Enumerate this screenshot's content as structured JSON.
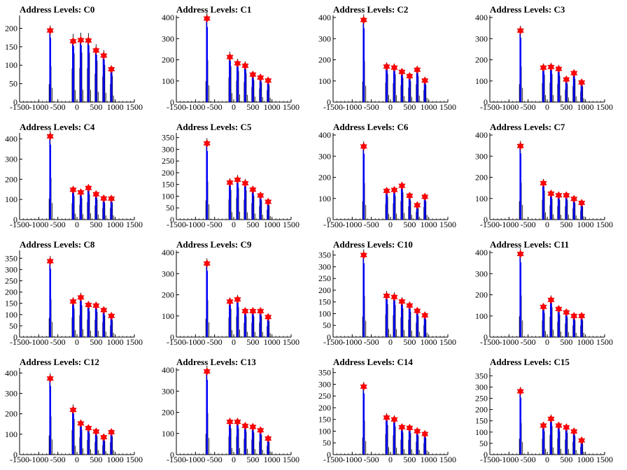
{
  "chart_data": [
    {
      "type": "histogram",
      "title": "Address Levels: C0",
      "xlim": [
        -1500,
        1500
      ],
      "ylim": [
        0,
        235
      ],
      "xticks": [
        "-1500",
        "-1000",
        "-500",
        "0",
        "500",
        "1000",
        "1500"
      ],
      "yticks": [
        "0",
        "50",
        "100",
        "150",
        "200"
      ],
      "peaks": [
        {
          "x": -700,
          "y": 194
        },
        {
          "x": -100,
          "y": 165
        },
        {
          "x": 100,
          "y": 168
        },
        {
          "x": 300,
          "y": 167
        },
        {
          "x": 500,
          "y": 140
        },
        {
          "x": 700,
          "y": 126
        },
        {
          "x": 900,
          "y": 89
        }
      ]
    },
    {
      "type": "histogram",
      "title": "Address Levels: C1",
      "xlim": [
        -1500,
        1500
      ],
      "ylim": [
        0,
        410
      ],
      "xticks": [
        "-1500",
        "-1000",
        "-500",
        "0",
        "500",
        "1000",
        "1500"
      ],
      "yticks": [
        "0",
        "100",
        "200",
        "300",
        "400"
      ],
      "peaks": [
        {
          "x": -700,
          "y": 395
        },
        {
          "x": -100,
          "y": 213
        },
        {
          "x": 100,
          "y": 183
        },
        {
          "x": 300,
          "y": 172
        },
        {
          "x": 500,
          "y": 130
        },
        {
          "x": 700,
          "y": 116
        },
        {
          "x": 900,
          "y": 102
        }
      ]
    },
    {
      "type": "histogram",
      "title": "Address Levels: C2",
      "xlim": [
        -1500,
        1500
      ],
      "ylim": [
        0,
        410
      ],
      "xticks": [
        "-1500",
        "-1000",
        "-500",
        "0",
        "500",
        "1000",
        "1500"
      ],
      "yticks": [
        "0",
        "100",
        "200",
        "300",
        "400"
      ],
      "peaks": [
        {
          "x": -700,
          "y": 388
        },
        {
          "x": -100,
          "y": 168
        },
        {
          "x": 100,
          "y": 163
        },
        {
          "x": 300,
          "y": 143
        },
        {
          "x": 500,
          "y": 123
        },
        {
          "x": 700,
          "y": 153
        },
        {
          "x": 900,
          "y": 102
        }
      ]
    },
    {
      "type": "histogram",
      "title": "Address Levels: C3",
      "xlim": [
        -1500,
        1500
      ],
      "ylim": [
        0,
        410
      ],
      "xticks": [
        "-1500",
        "-1000",
        "-500",
        "0",
        "500",
        "1000",
        "1500"
      ],
      "yticks": [
        "0",
        "100",
        "200",
        "300",
        "400"
      ],
      "peaks": [
        {
          "x": -700,
          "y": 338
        },
        {
          "x": -100,
          "y": 163
        },
        {
          "x": 100,
          "y": 166
        },
        {
          "x": 300,
          "y": 157
        },
        {
          "x": 500,
          "y": 107
        },
        {
          "x": 700,
          "y": 137
        },
        {
          "x": 900,
          "y": 93
        }
      ]
    },
    {
      "type": "histogram",
      "title": "Address Levels: C4",
      "xlim": [
        -1500,
        1500
      ],
      "ylim": [
        0,
        430
      ],
      "xticks": [
        "-1500",
        "-1000",
        "-500",
        "0",
        "500",
        "1000",
        "1500"
      ],
      "yticks": [
        "0",
        "100",
        "200",
        "300",
        "400"
      ],
      "peaks": [
        {
          "x": -700,
          "y": 413
        },
        {
          "x": -100,
          "y": 148
        },
        {
          "x": 100,
          "y": 135
        },
        {
          "x": 300,
          "y": 157
        },
        {
          "x": 500,
          "y": 126
        },
        {
          "x": 700,
          "y": 105
        },
        {
          "x": 900,
          "y": 104
        }
      ]
    },
    {
      "type": "histogram",
      "title": "Address Levels: C5",
      "xlim": [
        -1500,
        1500
      ],
      "ylim": [
        0,
        370
      ],
      "xticks": [
        "-1500",
        "-1000",
        "-500",
        "0",
        "500",
        "1000",
        "1500"
      ],
      "yticks": [
        "0",
        "50",
        "100",
        "150",
        "200",
        "250",
        "300",
        "350"
      ],
      "peaks": [
        {
          "x": -700,
          "y": 325
        },
        {
          "x": -100,
          "y": 158
        },
        {
          "x": 100,
          "y": 170
        },
        {
          "x": 300,
          "y": 155
        },
        {
          "x": 500,
          "y": 128
        },
        {
          "x": 700,
          "y": 103
        },
        {
          "x": 900,
          "y": 76
        }
      ]
    },
    {
      "type": "histogram",
      "title": "Address Levels: C6",
      "xlim": [
        -1500,
        1500
      ],
      "ylim": [
        0,
        410
      ],
      "xticks": [
        "-1500",
        "-1000",
        "-500",
        "0",
        "500",
        "1000",
        "1500"
      ],
      "yticks": [
        "0",
        "100",
        "200",
        "300",
        "400"
      ],
      "peaks": [
        {
          "x": -700,
          "y": 346
        },
        {
          "x": -100,
          "y": 136
        },
        {
          "x": 100,
          "y": 140
        },
        {
          "x": 300,
          "y": 160
        },
        {
          "x": 500,
          "y": 113
        },
        {
          "x": 700,
          "y": 68
        },
        {
          "x": 900,
          "y": 108
        }
      ]
    },
    {
      "type": "histogram",
      "title": "Address Levels: C7",
      "xlim": [
        -1500,
        1500
      ],
      "ylim": [
        0,
        410
      ],
      "xticks": [
        "-1500",
        "-1000",
        "-500",
        "0",
        "500",
        "1000",
        "1500"
      ],
      "yticks": [
        "0",
        "100",
        "200",
        "300",
        "400"
      ],
      "peaks": [
        {
          "x": -700,
          "y": 348
        },
        {
          "x": -100,
          "y": 172
        },
        {
          "x": 100,
          "y": 123
        },
        {
          "x": 300,
          "y": 115
        },
        {
          "x": 500,
          "y": 115
        },
        {
          "x": 700,
          "y": 98
        },
        {
          "x": 900,
          "y": 79
        }
      ]
    },
    {
      "type": "histogram",
      "title": "Address Levels: C8",
      "xlim": [
        -1500,
        1500
      ],
      "ylim": [
        0,
        385
      ],
      "xticks": [
        "-1500",
        "-1000",
        "-500",
        "0",
        "500",
        "1000",
        "1500"
      ],
      "yticks": [
        "0",
        "50",
        "100",
        "150",
        "200",
        "250",
        "300",
        "350"
      ],
      "peaks": [
        {
          "x": -700,
          "y": 337
        },
        {
          "x": -100,
          "y": 158
        },
        {
          "x": 100,
          "y": 176
        },
        {
          "x": 300,
          "y": 143
        },
        {
          "x": 500,
          "y": 140
        },
        {
          "x": 700,
          "y": 120
        },
        {
          "x": 900,
          "y": 94
        }
      ]
    },
    {
      "type": "histogram",
      "title": "Address Levels: C9",
      "xlim": [
        -1500,
        1500
      ],
      "ylim": [
        0,
        410
      ],
      "xticks": [
        "-1500",
        "-1000",
        "-500",
        "0",
        "500",
        "1000",
        "1500"
      ],
      "yticks": [
        "0",
        "100",
        "200",
        "300",
        "400"
      ],
      "peaks": [
        {
          "x": -700,
          "y": 348
        },
        {
          "x": -100,
          "y": 168
        },
        {
          "x": 100,
          "y": 178
        },
        {
          "x": 300,
          "y": 123
        },
        {
          "x": 500,
          "y": 123
        },
        {
          "x": 700,
          "y": 123
        },
        {
          "x": 900,
          "y": 95
        }
      ]
    },
    {
      "type": "histogram",
      "title": "Address Levels: C10",
      "xlim": [
        -1500,
        1500
      ],
      "ylim": [
        0,
        370
      ],
      "xticks": [
        "-1500",
        "-1000",
        "-500",
        "0",
        "500",
        "1000",
        "1500"
      ],
      "yticks": [
        "0",
        "50",
        "100",
        "150",
        "200",
        "250",
        "300",
        "350"
      ],
      "peaks": [
        {
          "x": -700,
          "y": 350
        },
        {
          "x": -100,
          "y": 176
        },
        {
          "x": 100,
          "y": 171
        },
        {
          "x": 300,
          "y": 152
        },
        {
          "x": 500,
          "y": 135
        },
        {
          "x": 700,
          "y": 112
        },
        {
          "x": 900,
          "y": 93
        }
      ]
    },
    {
      "type": "histogram",
      "title": "Address Levels: C11",
      "xlim": [
        -1500,
        1500
      ],
      "ylim": [
        0,
        410
      ],
      "xticks": [
        "-1500",
        "-1000",
        "-500",
        "0",
        "500",
        "1000",
        "1500"
      ],
      "yticks": [
        "0",
        "100",
        "200",
        "300",
        "400"
      ],
      "peaks": [
        {
          "x": -700,
          "y": 393
        },
        {
          "x": -100,
          "y": 143
        },
        {
          "x": 100,
          "y": 176
        },
        {
          "x": 300,
          "y": 133
        },
        {
          "x": 500,
          "y": 117
        },
        {
          "x": 700,
          "y": 100
        },
        {
          "x": 900,
          "y": 100
        }
      ]
    },
    {
      "type": "histogram",
      "title": "Address Levels: C12",
      "xlim": [
        -1500,
        1500
      ],
      "ylim": [
        0,
        425
      ],
      "xticks": [
        "-1500",
        "-1000",
        "-500",
        "0",
        "500",
        "1000",
        "1500"
      ],
      "yticks": [
        "0",
        "100",
        "200",
        "300",
        "400"
      ],
      "peaks": [
        {
          "x": -700,
          "y": 373
        },
        {
          "x": -100,
          "y": 219
        },
        {
          "x": 100,
          "y": 153
        },
        {
          "x": 300,
          "y": 130
        },
        {
          "x": 500,
          "y": 113
        },
        {
          "x": 700,
          "y": 85
        },
        {
          "x": 900,
          "y": 110
        }
      ]
    },
    {
      "type": "histogram",
      "title": "Address Levels: C13",
      "xlim": [
        -1500,
        1500
      ],
      "ylim": [
        0,
        410
      ],
      "xticks": [
        "-1500",
        "-1000",
        "-500",
        "0",
        "500",
        "1000",
        "1500"
      ],
      "yticks": [
        "0",
        "100",
        "200",
        "300",
        "400"
      ],
      "peaks": [
        {
          "x": -700,
          "y": 393
        },
        {
          "x": -100,
          "y": 155
        },
        {
          "x": 100,
          "y": 155
        },
        {
          "x": 300,
          "y": 136
        },
        {
          "x": 500,
          "y": 131
        },
        {
          "x": 700,
          "y": 115
        },
        {
          "x": 900,
          "y": 76
        }
      ]
    },
    {
      "type": "histogram",
      "title": "Address Levels: C14",
      "xlim": [
        -1500,
        1500
      ],
      "ylim": [
        0,
        370
      ],
      "xticks": [
        "-1500",
        "-1000",
        "-500",
        "0",
        "500",
        "1000",
        "1500"
      ],
      "yticks": [
        "0",
        "50",
        "100",
        "150",
        "200",
        "250",
        "300",
        "350"
      ],
      "peaks": [
        {
          "x": -700,
          "y": 290
        },
        {
          "x": -100,
          "y": 158
        },
        {
          "x": 100,
          "y": 150
        },
        {
          "x": 300,
          "y": 117
        },
        {
          "x": 500,
          "y": 114
        },
        {
          "x": 700,
          "y": 100
        },
        {
          "x": 900,
          "y": 88
        }
      ]
    },
    {
      "type": "histogram",
      "title": "Address Levels: C15",
      "xlim": [
        -1500,
        1500
      ],
      "ylim": [
        0,
        385
      ],
      "xticks": [
        "-1500",
        "-1000",
        "-500",
        "0",
        "500",
        "1000",
        "1500"
      ],
      "yticks": [
        "0",
        "50",
        "100",
        "150",
        "200",
        "250",
        "300",
        "350"
      ],
      "peaks": [
        {
          "x": -700,
          "y": 281
        },
        {
          "x": -100,
          "y": 129
        },
        {
          "x": 100,
          "y": 159
        },
        {
          "x": 300,
          "y": 129
        },
        {
          "x": 500,
          "y": 121
        },
        {
          "x": 700,
          "y": 103
        },
        {
          "x": 900,
          "y": 63
        }
      ]
    }
  ],
  "style": {
    "histogram_color": "#0000ff",
    "outline_color": "#000000",
    "marker_color": "#ff0000",
    "marker_shape": "star"
  }
}
